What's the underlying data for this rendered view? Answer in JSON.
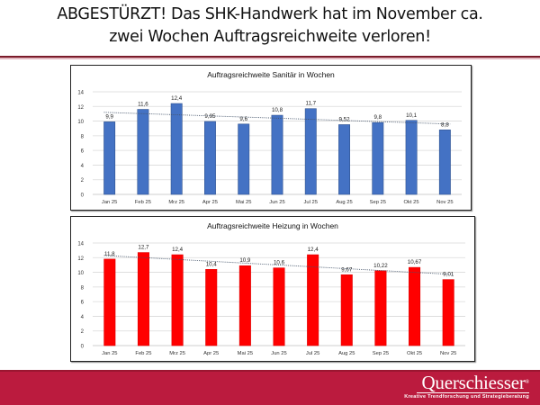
{
  "page": {
    "title_line1": "ABGESTÜRZT! Das SHK-Handwerk hat im November ca.",
    "title_line2": "zwei Wochen Auftragsreichweite verloren!"
  },
  "footer": {
    "brand_name": "Querschiesser",
    "brand_mark": "®",
    "tagline": "Kreative Trendforschung und Strategieberatung",
    "color": "#bb1b3e"
  },
  "chart_data": [
    {
      "type": "bar",
      "title": "Auftragsreichweite Sanitär in Wochen",
      "categories": [
        "Jan 25",
        "Feb 25",
        "Mrz 25",
        "Apr 25",
        "Mai 25",
        "Jun 25",
        "Jul 25",
        "Aug 25",
        "Sep 25",
        "Okt 25",
        "Nov 25"
      ],
      "values": [
        9.9,
        11.6,
        12.4,
        9.95,
        9.6,
        10.8,
        11.7,
        9.52,
        9.8,
        10.1,
        8.8
      ],
      "labels": [
        "9,9",
        "11,6",
        "12,4",
        "9,95",
        "9,6",
        "10,8",
        "11,7",
        "9,52",
        "9,8",
        "10,1",
        "8,8"
      ],
      "yticks": [
        0,
        2,
        4,
        6,
        8,
        10,
        12,
        14
      ],
      "ylim": [
        0,
        14
      ],
      "xlabel": "",
      "ylabel": "",
      "grid": true,
      "trendline": {
        "style": "dotted",
        "start": 11.2,
        "end": 9.6
      },
      "color": "#4472c4"
    },
    {
      "type": "bar",
      "title": "Auftragsreichweite Heizung in Wochen",
      "categories": [
        "Jan 25",
        "Feb 25",
        "Mrz 25",
        "Apr 25",
        "Mai 25",
        "Jun 25",
        "Jul 25",
        "Aug 25",
        "Sep 25",
        "Okt 25",
        "Nov 25"
      ],
      "values": [
        11.8,
        12.7,
        12.4,
        10.4,
        10.9,
        10.6,
        12.4,
        9.67,
        10.22,
        10.67,
        9.01
      ],
      "labels": [
        "11,8",
        "12,7",
        "12,4",
        "10,4",
        "10,9",
        "10,6",
        "12,4",
        "9,67",
        "10,22",
        "10,67",
        "9,01"
      ],
      "yticks": [
        0,
        2,
        4,
        6,
        8,
        10,
        12,
        14
      ],
      "ylim": [
        0,
        14
      ],
      "xlabel": "",
      "ylabel": "",
      "grid": true,
      "trendline": {
        "style": "dotted",
        "start": 12.3,
        "end": 9.7
      },
      "color": "#ff0000"
    }
  ]
}
